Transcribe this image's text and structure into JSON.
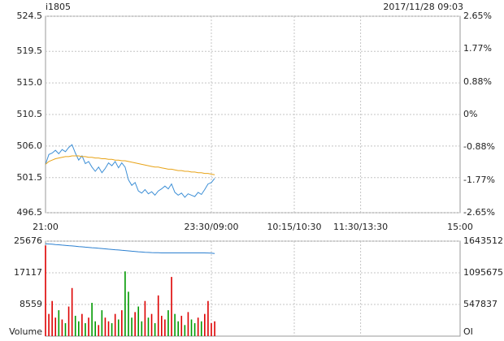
{
  "header": {
    "symbol": "i1805",
    "datetime": "2017/11/28 09:03"
  },
  "chart_data": [
    {
      "type": "line",
      "x": [
        0,
        3,
        6,
        9,
        12,
        15,
        18,
        21,
        24,
        27,
        30,
        33,
        36,
        39,
        42,
        45,
        48,
        51,
        54,
        57,
        60,
        63,
        66,
        69,
        72,
        75,
        78,
        81,
        84,
        87,
        90,
        93,
        96,
        99,
        102,
        105,
        108,
        111,
        114,
        117,
        120,
        123,
        126,
        129,
        132,
        135,
        138,
        141,
        144,
        147,
        150,
        153
      ],
      "xlim": [
        0,
        375
      ],
      "xticks": [
        {
          "value": 0,
          "label": "21:00"
        },
        {
          "value": 150,
          "label": "23:30/09:00"
        },
        {
          "value": 225,
          "label": "10:15/10:30"
        },
        {
          "value": 285,
          "label": "11:30/13:30"
        },
        {
          "value": 375,
          "label": "15:00"
        }
      ],
      "ylim": [
        496.5,
        524.5
      ],
      "yticks": [
        524.5,
        519.5,
        {
          "value": 515,
          "label": "515.0"
        },
        510.5,
        {
          "value": 506,
          "label": "506.0"
        },
        501.5,
        496.5
      ],
      "y2lim": [
        -2.65,
        2.65
      ],
      "y2ticks": [
        {
          "value": 2.65,
          "label": "2.65%"
        },
        {
          "value": 1.77,
          "label": "1.77%"
        },
        {
          "value": 0.88,
          "label": "0.88%"
        },
        {
          "value": 0,
          "label": "0%"
        },
        {
          "value": -0.88,
          "label": "-0.88%"
        },
        {
          "value": -1.77,
          "label": "-1.77%"
        },
        {
          "value": -2.65,
          "label": "-2.65%"
        }
      ],
      "up_color": "#cc0000",
      "down_color": "#008000",
      "grid": true,
      "series": [
        {
          "color": "#3d8fd6",
          "values": [
            503.4,
            504.8,
            505.0,
            505.4,
            504.9,
            505.5,
            505.2,
            505.8,
            506.2,
            505.0,
            504.0,
            504.6,
            503.5,
            503.8,
            503.0,
            502.4,
            503.0,
            502.2,
            502.8,
            503.6,
            503.2,
            503.8,
            502.9,
            503.6,
            503.0,
            501.2,
            500.4,
            500.8,
            499.6,
            499.3,
            499.8,
            499.2,
            499.5,
            499.0,
            499.6,
            499.9,
            500.3,
            499.9,
            500.6,
            499.4,
            499.0,
            499.3,
            498.7,
            499.2,
            499.0,
            498.8,
            499.4,
            499.1,
            499.8,
            500.6,
            500.8,
            501.4
          ]
        },
        {
          "color": "#e8a317",
          "values": [
            503.4,
            503.8,
            504.0,
            504.2,
            504.3,
            504.4,
            504.5,
            504.5,
            504.6,
            504.6,
            504.6,
            504.5,
            504.5,
            504.4,
            504.4,
            504.3,
            504.3,
            504.2,
            504.2,
            504.1,
            504.1,
            504.0,
            504.0,
            503.9,
            503.9,
            503.8,
            503.7,
            503.6,
            503.5,
            503.4,
            503.3,
            503.2,
            503.1,
            503.0,
            503.0,
            502.9,
            502.8,
            502.7,
            502.7,
            502.6,
            502.5,
            502.5,
            502.4,
            502.4,
            502.3,
            502.3,
            502.2,
            502.2,
            502.1,
            502.1,
            502.0,
            501.9
          ]
        }
      ]
    },
    {
      "type": "bar",
      "x": [
        0,
        3,
        6,
        9,
        12,
        15,
        18,
        21,
        24,
        27,
        30,
        33,
        36,
        39,
        42,
        45,
        48,
        51,
        54,
        57,
        60,
        63,
        66,
        69,
        72,
        75,
        78,
        81,
        84,
        87,
        90,
        93,
        96,
        99,
        102,
        105,
        108,
        111,
        114,
        117,
        120,
        123,
        126,
        129,
        132,
        135,
        138,
        141,
        144,
        147,
        150,
        153
      ],
      "xlim": [
        0,
        375
      ],
      "ylim": [
        0,
        25676
      ],
      "yticks": [
        {
          "value": 0,
          "label": "Volume"
        },
        8559,
        17117,
        25676
      ],
      "y2lim": [
        0,
        1643512
      ],
      "y2ticks": [
        {
          "value": 0,
          "label": "OI"
        },
        547837,
        1095675,
        1643512
      ],
      "up_color": "#dd0000",
      "down_color": "#009900",
      "grid": true,
      "series": [
        {
          "values": [
            24500,
            6000,
            9500,
            5000,
            7000,
            4500,
            3500,
            8000,
            13000,
            5500,
            4000,
            6000,
            3500,
            5000,
            9000,
            4000,
            3000,
            7000,
            5000,
            4000,
            3500,
            6000,
            4500,
            7000,
            17500,
            12000,
            5000,
            6500,
            8000,
            4000,
            9500,
            5000,
            6000,
            3500,
            11000,
            5500,
            4500,
            7000,
            16000,
            6000,
            4000,
            5500,
            3000,
            6500,
            4500,
            3500,
            5000,
            4000,
            6000,
            9500,
            3500,
            4000
          ]
        },
        {
          "axis": "y2",
          "color": "#2a7fd0",
          "values": [
            1600000,
            1595000,
            1590000,
            1585000,
            1580000,
            1575000,
            1570000,
            1565000,
            1560000,
            1555000,
            1550000,
            1545000,
            1540000,
            1535000,
            1530000,
            1525000,
            1520000,
            1515000,
            1510000,
            1505000,
            1500000,
            1495000,
            1490000,
            1485000,
            1480000,
            1475000,
            1470000,
            1465000,
            1460000,
            1455000,
            1450000,
            1448000,
            1446000,
            1444000,
            1442000,
            1440000,
            1440000,
            1440000,
            1440000,
            1440000,
            1440000,
            1440000,
            1440000,
            1440000,
            1440000,
            1440000,
            1440000,
            1440000,
            1440000,
            1438000,
            1436000,
            1430000
          ]
        }
      ]
    }
  ]
}
